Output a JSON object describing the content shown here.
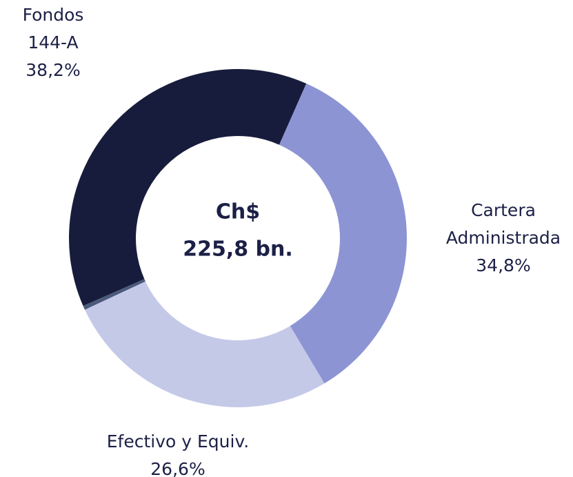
{
  "chart_data": {
    "type": "pie",
    "categories": [
      "Cartera Administrada",
      "Efectivo y Equiv.",
      null,
      "Fondos 144-A"
    ],
    "values": [
      34.8,
      26.6,
      0.4,
      38.2
    ],
    "value_labels": [
      "34,8%",
      "26,6%",
      null,
      "38,2%"
    ],
    "colors": [
      "#8c94d4",
      "#c5c9e8",
      "#4a5a7a",
      "#181c3c"
    ],
    "center_text": [
      "Ch$",
      "225,8 bn."
    ]
  }
}
